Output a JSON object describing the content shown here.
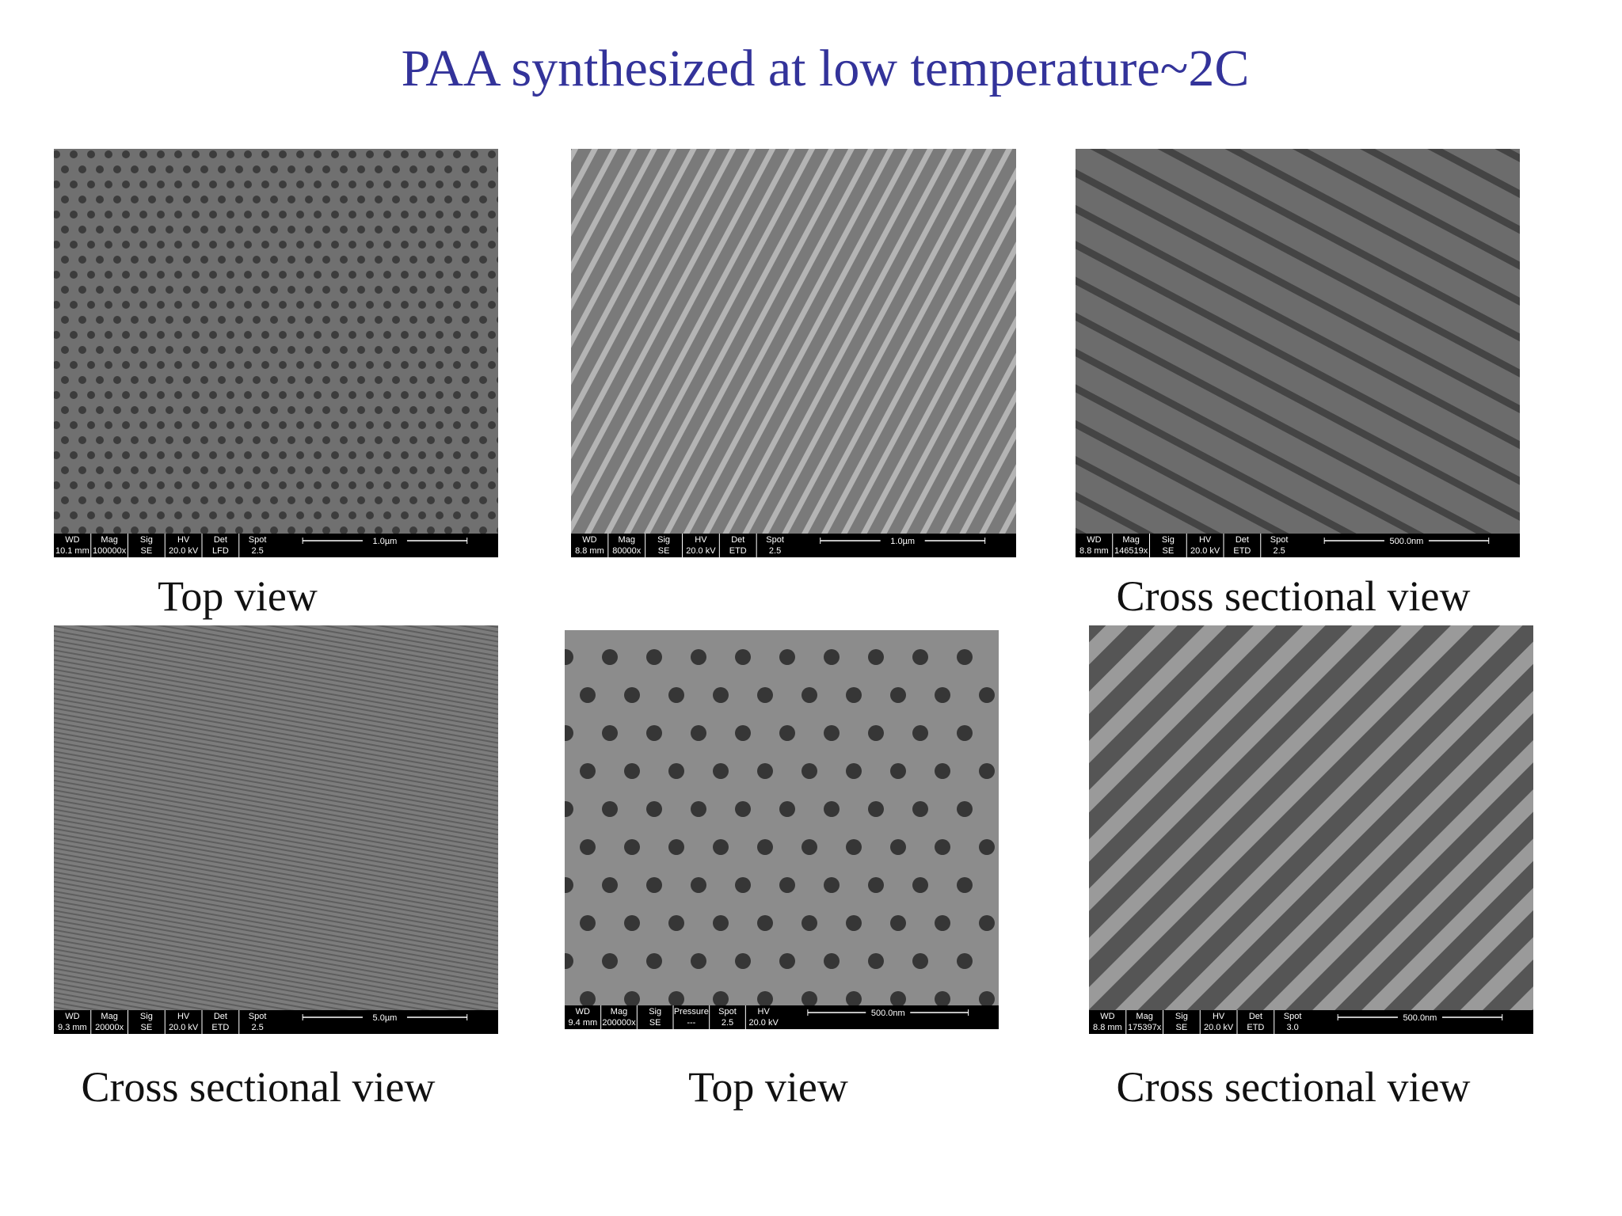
{
  "title": "PAA synthesized at low temperature~2C",
  "panels": [
    {
      "databar": {
        "headers": [
          "WD",
          "Mag",
          "Sig",
          "HV",
          "Det",
          "Spot"
        ],
        "values": [
          "10.1 mm",
          "100000x",
          "SE",
          "20.0 kV",
          "LFD",
          "2.5"
        ],
        "scale_bar": "1.0µm"
      },
      "caption": "Top view"
    },
    {
      "databar": {
        "headers": [
          "WD",
          "Mag",
          "Sig",
          "HV",
          "Det",
          "Spot"
        ],
        "values": [
          "8.8 mm",
          "80000x",
          "SE",
          "20.0 kV",
          "ETD",
          "2.5"
        ],
        "scale_bar": "1.0µm"
      }
    },
    {
      "databar": {
        "headers": [
          "WD",
          "Mag",
          "Sig",
          "HV",
          "Det",
          "Spot"
        ],
        "values": [
          "8.8 mm",
          "146519x",
          "SE",
          "20.0 kV",
          "ETD",
          "2.5"
        ],
        "scale_bar": "500.0nm"
      },
      "caption": "Cross sectional view"
    },
    {
      "databar": {
        "headers": [
          "WD",
          "Mag",
          "Sig",
          "HV",
          "Det",
          "Spot"
        ],
        "values": [
          "9.3 mm",
          "20000x",
          "SE",
          "20.0 kV",
          "ETD",
          "2.5"
        ],
        "scale_bar": "5.0µm"
      },
      "caption": "Cross sectional view"
    },
    {
      "databar": {
        "headers": [
          "WD",
          "Mag",
          "Sig",
          "Pressure",
          "Spot",
          "HV"
        ],
        "values": [
          "9.4 mm",
          "200000x",
          "SE",
          "---",
          "2.5",
          "20.0 kV"
        ],
        "scale_bar": "500.0nm"
      },
      "caption": "Top view"
    },
    {
      "databar": {
        "headers": [
          "WD",
          "Mag",
          "Sig",
          "HV",
          "Det",
          "Spot"
        ],
        "values": [
          "8.8 mm",
          "175397x",
          "SE",
          "20.0 kV",
          "ETD",
          "3.0"
        ],
        "scale_bar": "500.0nm"
      },
      "caption": "Cross sectional view"
    }
  ]
}
